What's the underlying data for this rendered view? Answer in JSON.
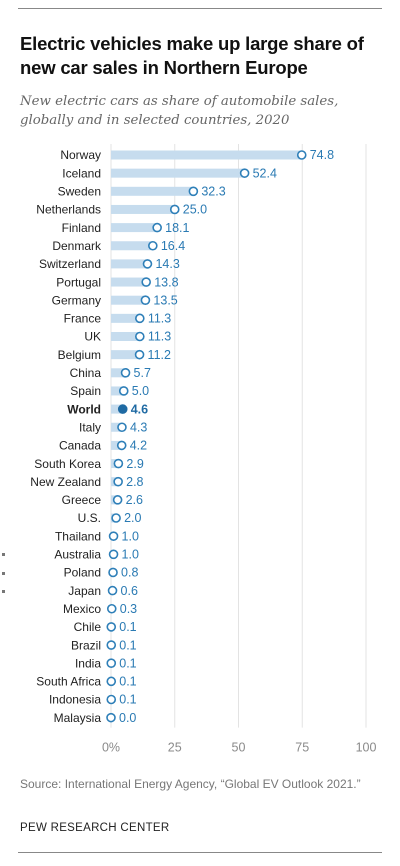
{
  "header": {
    "title": "Electric vehicles make up large share of new car sales in Northern Europe",
    "subtitle": "New electric cars as share of automobile sales, globally and in selected countries, 2020"
  },
  "footer": {
    "source": "Source: International Energy Agency, “Global EV Outlook 2021.”",
    "brand": "PEW RESEARCH CENTER"
  },
  "colors": {
    "bar": "#c6dcee",
    "marker": "#2e7fb8",
    "highlight": "#1f6aa3",
    "label": "#2a7ab3",
    "axis_text": "#8a8a8a",
    "category_text": "#222222"
  },
  "chart_data": {
    "type": "bar",
    "orientation": "horizontal",
    "highlight_category": "World",
    "categories": [
      "Norway",
      "Iceland",
      "Sweden",
      "Netherlands",
      "Finland",
      "Denmark",
      "Switzerland",
      "Portugal",
      "Germany",
      "France",
      "UK",
      "Belgium",
      "China",
      "Spain",
      "World",
      "Italy",
      "Canada",
      "South Korea",
      "New Zealand",
      "Greece",
      "U.S.",
      "Thailand",
      "Australia",
      "Poland",
      "Japan",
      "Mexico",
      "Chile",
      "Brazil",
      "India",
      "South Africa",
      "Indonesia",
      "Malaysia"
    ],
    "values": [
      74.8,
      52.4,
      32.3,
      25.0,
      18.1,
      16.4,
      14.3,
      13.8,
      13.5,
      11.3,
      11.3,
      11.2,
      5.7,
      5.0,
      4.6,
      4.3,
      4.2,
      2.9,
      2.8,
      2.6,
      2.0,
      1.0,
      1.0,
      0.8,
      0.6,
      0.3,
      0.1,
      0.1,
      0.1,
      0.1,
      0.1,
      0.0
    ],
    "value_labels": [
      "74.8",
      "52.4",
      "32.3",
      "25.0",
      "18.1",
      "16.4",
      "14.3",
      "13.8",
      "13.5",
      "11.3",
      "11.3",
      "11.2",
      "5.7",
      "5.0",
      "4.6",
      "4.3",
      "4.2",
      "2.9",
      "2.8",
      "2.6",
      "2.0",
      "1.0",
      "1.0",
      "0.8",
      "0.6",
      "0.3",
      "0.1",
      "0.1",
      "0.1",
      "0.1",
      "0.1",
      "0.0"
    ],
    "xlim": [
      0,
      100
    ],
    "xticks": [
      0,
      25,
      50,
      75,
      100
    ],
    "xtick_labels": [
      "0%",
      "25",
      "50",
      "75",
      "100"
    ],
    "grid": "vertical gridlines"
  }
}
